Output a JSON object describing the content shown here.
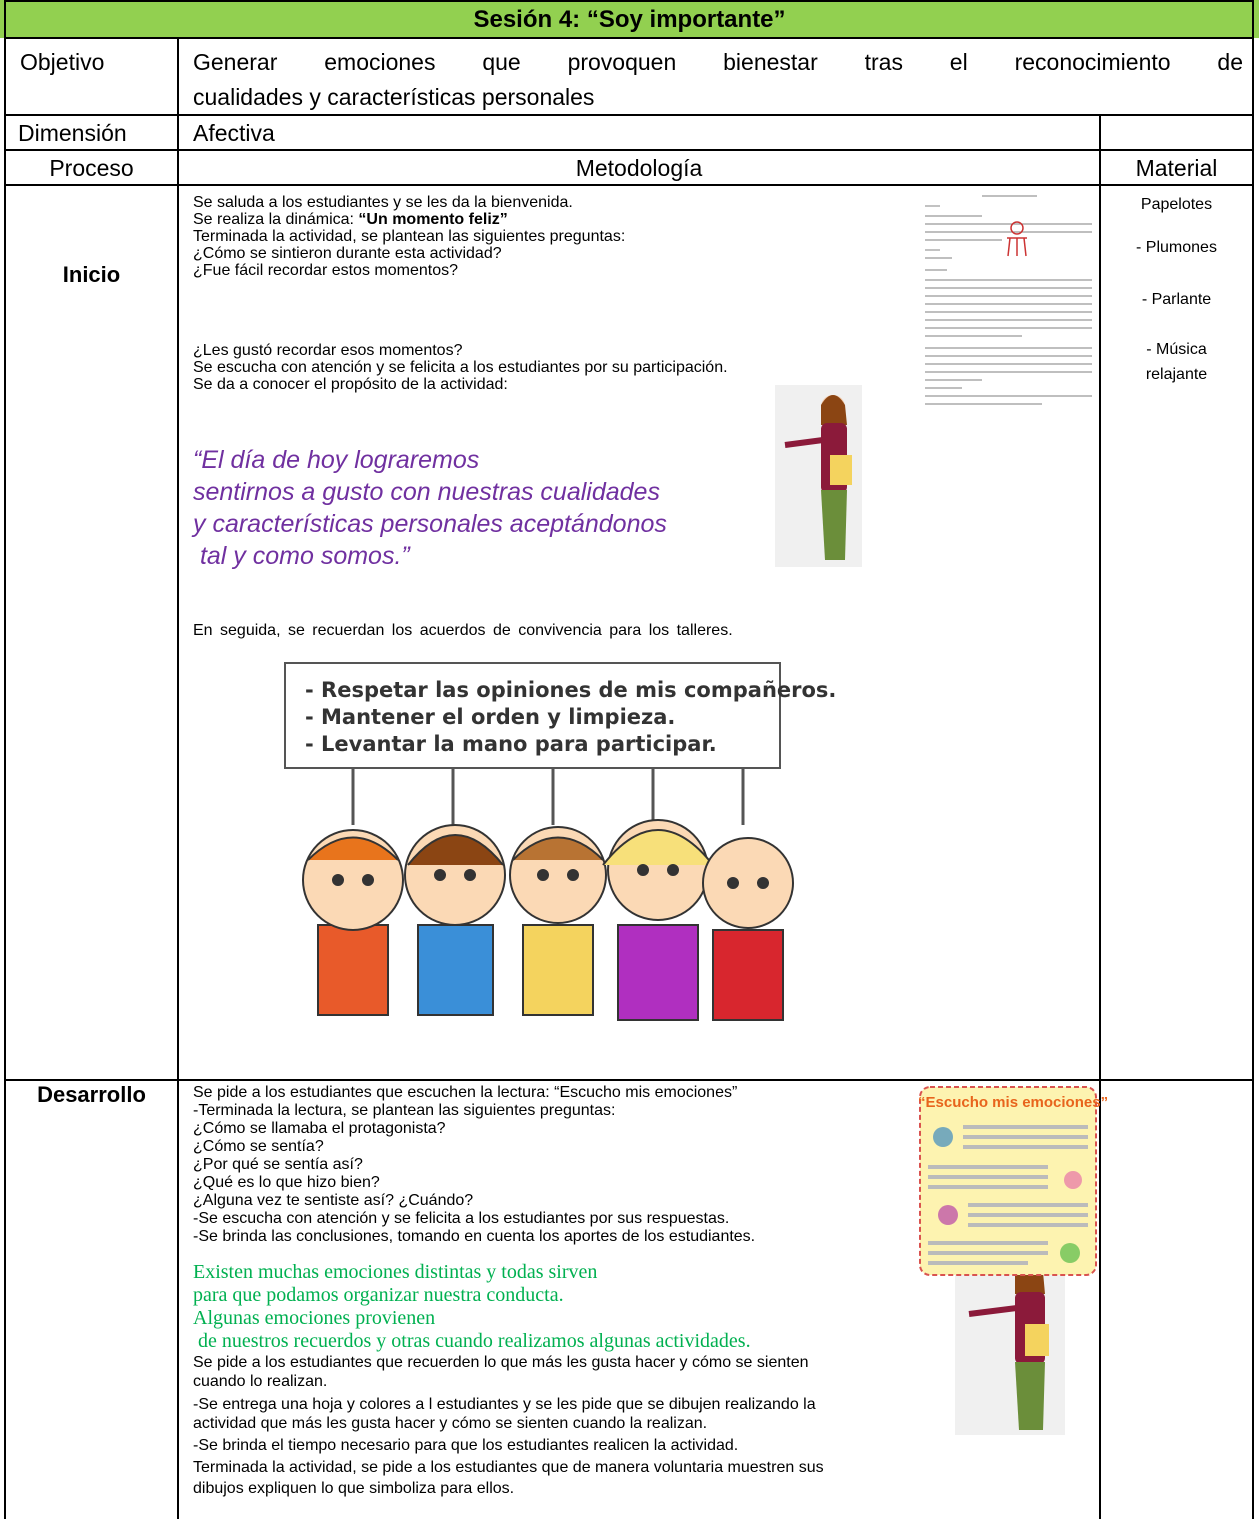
{
  "title": "Sesión 4: “Soy importante”",
  "objective": {
    "label": "Objetivo",
    "lines": [
      "Generar emociones que provoquen bienestar tras el reconocimiento de",
      "cualidades y características personales"
    ]
  },
  "dimension": {
    "label": "Dimensión",
    "text": "Afectiva"
  },
  "header": {
    "process": "Proceso",
    "methodology": "Metodología",
    "material": "Material"
  },
  "inicio": {
    "label": "Inicio",
    "lines": [
      "Se saluda a los estudiantes y se les da la bienvenida.",
      "Se realiza la dinámica: ",
      "Terminada la actividad, se plantean las siguientes preguntas:",
      "¿Cómo se sintieron durante esta actividad?",
      "¿Fue fácil recordar estos momentos?",
      "¿Les gustó recordar esos momentos?",
      "Se escucha con atención y se felicita a los estudiantes por su participación.",
      "Se da a conocer el propósito de la actividad:"
    ],
    "bold": "“Un momento feliz”",
    "quote": [
      "“El día de hoy lograremos",
      "sentirnos a gusto con nuestras cualidades",
      "y características personales aceptándonos",
      " tal y como somos.”"
    ],
    "agreements_intro": "En seguida, se recuerdan los acuerdos de convivencia para los talleres.",
    "agreements": [
      "- Respetar las opiniones de mis compañeros.",
      "- Mantener el orden y limpieza.",
      "- Levantar la mano para participar."
    ],
    "materials": [
      "Papelotes",
      "- Plumones",
      "- Parlante",
      "- Música",
      "relajante"
    ]
  },
  "desarrollo": {
    "label": "Desarrollo",
    "lines": [
      "Se pide a los estudiantes que escuchen la lectura: “Escucho mis emociones”",
      "-Terminada la lectura, se plantean las siguientes preguntas:",
      "¿Cómo se llamaba el protagonista?",
      "¿Cómo se sentía?",
      "¿Por qué se sentía así?",
      "¿Qué es lo que hizo bien?",
      "¿Alguna vez te sentiste así? ¿Cuándo?",
      "-Se escucha con atención y se felicita a los estudiantes por sus respuestas.",
      "-Se brinda las conclusiones, tomando en cuenta los aportes de los estudiantes."
    ],
    "green": [
      "Existen muchas emociones distintas y todas sirven",
      "para que podamos organizar nuestra conducta.",
      "Algunas emociones provienen",
      " de nuestros recuerdos y otras cuando realizamos algunas actividades."
    ],
    "lines2": [
      "Se pide a los estudiantes que recuerden lo que más les gusta hacer y cómo se sienten",
      "cuando lo realizan.",
      "-Se entrega una hoja y colores a l estudiantes y se les pide que se dibujen realizando la",
      "actividad que más les gusta hacer y cómo se sienten cuando la realizan.",
      "-Se brinda el tiempo necesario para que los estudiantes realicen la actividad.",
      "Terminada la actividad, se pide a los estudiantes que de manera voluntaria muestren sus",
      "dibujos expliquen lo que simboliza para ellos."
    ],
    "card_title": "“Escucho mis emociones”"
  }
}
